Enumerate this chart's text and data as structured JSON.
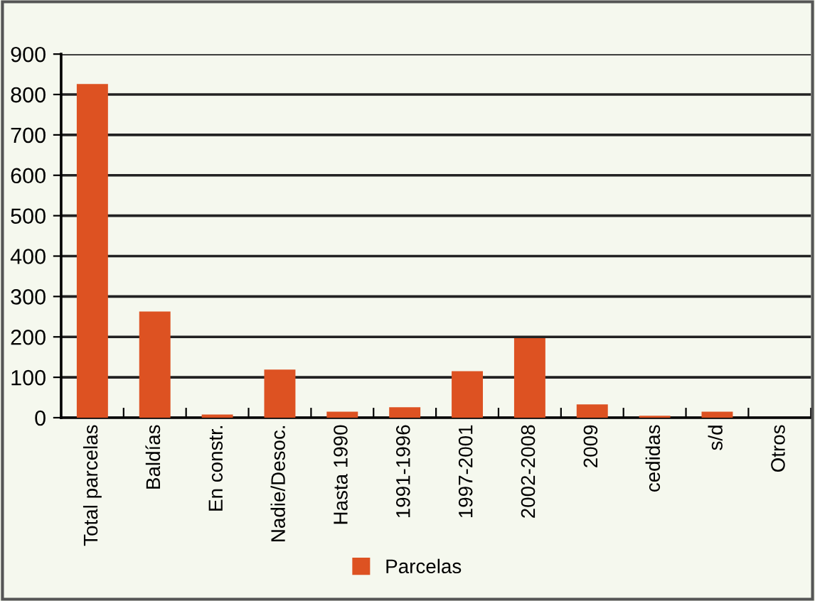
{
  "chart_data": {
    "type": "bar",
    "categories": [
      "Total parcelas",
      "Baldías",
      "En constr.",
      "Nadie/Desoc.",
      "Hasta 1990",
      "1991-1996",
      "1997-2001",
      "2002-2008",
      "2009",
      "cedidas",
      "s/d",
      "Otros"
    ],
    "series": [
      {
        "name": "Parcelas",
        "color": "#dd5222",
        "values": [
          826,
          263,
          8,
          119,
          15,
          26,
          115,
          197,
          33,
          5,
          15,
          0
        ]
      }
    ],
    "ylim": [
      0,
      900
    ],
    "yticks": [
      0,
      100,
      200,
      300,
      400,
      500,
      600,
      700,
      800,
      900
    ],
    "grid": "y",
    "legend": "bottom"
  }
}
